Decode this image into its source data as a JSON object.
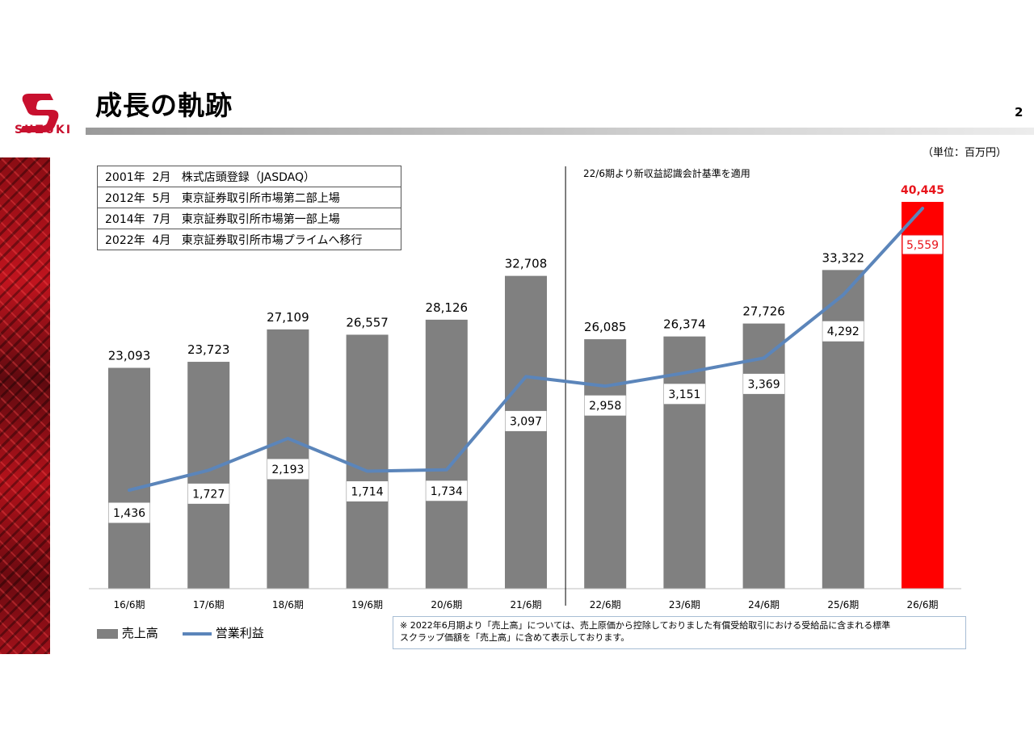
{
  "header": {
    "title": "成長の軌跡",
    "page_number": "2",
    "logo_text": "SUZUKI",
    "unit": "（単位：百万円）"
  },
  "history": [
    "2001年  2月   株式店頭登録（JASDAQ）",
    "2012年  5月   東京証券取引所市場第二部上場",
    "2014年  7月   東京証券取引所市場第一部上場",
    "2022年  4月   東京証券取引所市場プライムへ移行"
  ],
  "accounting_note": "22/6期より新収益認識会計基準を適用",
  "legend": {
    "bar_label": "売上高",
    "line_label": "営業利益"
  },
  "footnote": {
    "line1": "※ 2022年6月期より「売上高」については、売上原価から控除しておりました有償受給取引における受給品に含まれる標準",
    "line2": "スクラップ価額を「売上高」に含めて表示しております。"
  },
  "colors": {
    "bar": "#808080",
    "forecast_bar": "#ff0000",
    "line": "#5b85ba",
    "forecast_label": "#e8141b",
    "logo": "#c8102e"
  },
  "chart_data": {
    "type": "bar",
    "categories": [
      "16/6期",
      "17/6期",
      "18/6期",
      "19/6期",
      "20/6期",
      "21/6期",
      "22/6期",
      "23/6期",
      "24/6期",
      "25/6期",
      "26/6期"
    ],
    "series": [
      {
        "name": "売上高",
        "type": "bar",
        "values": [
          23093,
          23723,
          27109,
          26557,
          28126,
          32708,
          26085,
          26374,
          27726,
          33322,
          40445
        ],
        "labels": [
          "23,093",
          "23,723",
          "27,109",
          "26,557",
          "28,126",
          "32,708",
          "26,085",
          "26,374",
          "27,726",
          "33,322",
          "40,445"
        ]
      },
      {
        "name": "営業利益",
        "type": "line",
        "values": [
          1436,
          1727,
          2193,
          1714,
          1734,
          3097,
          2958,
          3151,
          3369,
          4292,
          5559
        ],
        "labels": [
          "1,436",
          "1,727",
          "2,193",
          "1,714",
          "1,734",
          "3,097",
          "2,958",
          "3,151",
          "3,369",
          "4,292",
          "5,559"
        ]
      }
    ],
    "highlight_index": 10,
    "divider_after_index": 5,
    "grid": false,
    "legend_position": "bottom-left"
  }
}
